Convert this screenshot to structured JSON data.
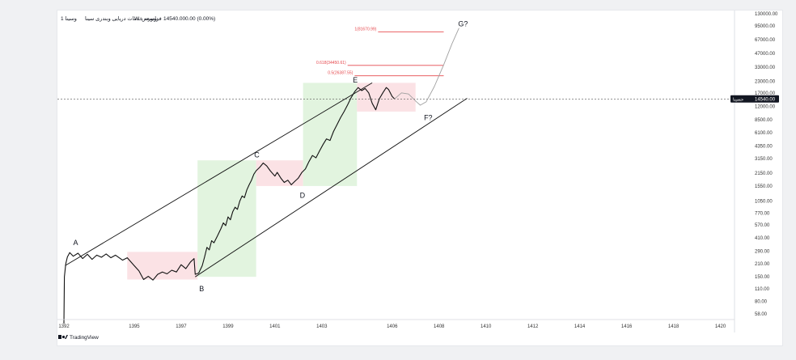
{
  "header": {
    "symbol": "وسینا 1",
    "name": "توسعه خدمات دریایی وبندری سینا",
    "interval": "W",
    "exchange": "فرابورس",
    "price": "14540.00",
    "change": "0.00 (0.00%)"
  },
  "brand": {
    "label": "TradingView"
  },
  "colors": {
    "price_line": "#111111",
    "channel": "#111111",
    "fib_line": "#e5484d",
    "fib_text": "#e5484d",
    "green_box": "#d8f0d4",
    "red_box": "#f9d8dc",
    "price_badge": "#131722",
    "axis_text": "#333333"
  },
  "chart_data": {
    "type": "line",
    "scale": "log",
    "ylim": [
      50,
      130000
    ],
    "xlim": [
      1392,
      1420.5
    ],
    "x_ticks": [
      "1392",
      "1395",
      "1397",
      "1399",
      "1401",
      "1403",
      "1406",
      "1408",
      "1410",
      "1412",
      "1414",
      "1416",
      "1418",
      "1420"
    ],
    "y_ticks": [
      "130000.00",
      "95000.00",
      "67000.00",
      "47000.00",
      "33000.00",
      "23000.00",
      "17000.00",
      "12000.00",
      "8500.00",
      "6100.00",
      "4350.00",
      "3150.00",
      "2150.00",
      "1550.00",
      "1050.00",
      "770.00",
      "570.00",
      "410.00",
      "290.00",
      "210.00",
      "150.00",
      "110.00",
      "80.00",
      "58.00"
    ],
    "current_price": {
      "label": "حسینا",
      "value": "14540.00"
    },
    "price_series": [
      [
        1392.0,
        45
      ],
      [
        1392.02,
        150
      ],
      [
        1392.08,
        210
      ],
      [
        1392.15,
        250
      ],
      [
        1392.25,
        280
      ],
      [
        1392.4,
        255
      ],
      [
        1392.6,
        275
      ],
      [
        1392.8,
        240
      ],
      [
        1393.0,
        268
      ],
      [
        1393.2,
        235
      ],
      [
        1393.4,
        262
      ],
      [
        1393.6,
        248
      ],
      [
        1393.8,
        270
      ],
      [
        1394.0,
        245
      ],
      [
        1394.2,
        262
      ],
      [
        1394.5,
        230
      ],
      [
        1394.7,
        245
      ],
      [
        1395.0,
        200
      ],
      [
        1395.2,
        175
      ],
      [
        1395.4,
        140
      ],
      [
        1395.6,
        152
      ],
      [
        1395.8,
        138
      ],
      [
        1396.0,
        160
      ],
      [
        1396.2,
        170
      ],
      [
        1396.4,
        162
      ],
      [
        1396.6,
        178
      ],
      [
        1396.8,
        170
      ],
      [
        1397.0,
        205
      ],
      [
        1397.2,
        185
      ],
      [
        1397.4,
        220
      ],
      [
        1397.55,
        240
      ],
      [
        1397.6,
        160
      ],
      [
        1397.75,
        165
      ],
      [
        1397.9,
        200
      ],
      [
        1398.0,
        250
      ],
      [
        1398.1,
        320
      ],
      [
        1398.2,
        300
      ],
      [
        1398.3,
        380
      ],
      [
        1398.4,
        360
      ],
      [
        1398.55,
        430
      ],
      [
        1398.7,
        520
      ],
      [
        1398.8,
        600
      ],
      [
        1398.9,
        560
      ],
      [
        1399.0,
        700
      ],
      [
        1399.1,
        650
      ],
      [
        1399.2,
        800
      ],
      [
        1399.3,
        900
      ],
      [
        1399.4,
        850
      ],
      [
        1399.5,
        1050
      ],
      [
        1399.6,
        1200
      ],
      [
        1399.7,
        1150
      ],
      [
        1399.8,
        1400
      ],
      [
        1399.9,
        1600
      ],
      [
        1400.0,
        1800
      ],
      [
        1400.1,
        2100
      ],
      [
        1400.2,
        2300
      ],
      [
        1400.35,
        2500
      ],
      [
        1400.5,
        2800
      ],
      [
        1400.65,
        2600
      ],
      [
        1400.8,
        2300
      ],
      [
        1401.0,
        2000
      ],
      [
        1401.1,
        2200
      ],
      [
        1401.25,
        1900
      ],
      [
        1401.4,
        1700
      ],
      [
        1401.55,
        1800
      ],
      [
        1401.7,
        1600
      ],
      [
        1401.85,
        1750
      ],
      [
        1402.0,
        1900
      ],
      [
        1402.15,
        2200
      ],
      [
        1402.3,
        2400
      ],
      [
        1402.45,
        2900
      ],
      [
        1402.6,
        3400
      ],
      [
        1402.75,
        3200
      ],
      [
        1402.9,
        3800
      ],
      [
        1403.05,
        4500
      ],
      [
        1403.2,
        5200
      ],
      [
        1403.35,
        5000
      ],
      [
        1403.5,
        6300
      ],
      [
        1403.65,
        7500
      ],
      [
        1403.8,
        9000
      ],
      [
        1403.95,
        10500
      ],
      [
        1404.1,
        12500
      ],
      [
        1404.25,
        15000
      ],
      [
        1404.4,
        17500
      ],
      [
        1404.55,
        19500
      ],
      [
        1404.7,
        18000
      ],
      [
        1404.85,
        19000
      ],
      [
        1405.0,
        17000
      ],
      [
        1405.15,
        13000
      ],
      [
        1405.3,
        11000
      ],
      [
        1405.45,
        14500
      ],
      [
        1405.6,
        17000
      ],
      [
        1405.75,
        19500
      ],
      [
        1405.85,
        18500
      ],
      [
        1406.0,
        15500
      ],
      [
        1406.1,
        14540
      ]
    ],
    "projection": [
      [
        1406.1,
        14540
      ],
      [
        1406.4,
        17000
      ],
      [
        1406.7,
        16500
      ],
      [
        1407.0,
        13800
      ],
      [
        1407.2,
        12400
      ],
      [
        1407.45,
        13500
      ],
      [
        1407.8,
        20000
      ],
      [
        1408.2,
        35000
      ],
      [
        1408.55,
        60000
      ],
      [
        1408.85,
        90000
      ]
    ],
    "channel_upper": [
      [
        1392.05,
        200
      ],
      [
        1405.15,
        22000
      ]
    ],
    "channel_lower": [
      [
        1397.6,
        150
      ],
      [
        1409.2,
        14800
      ]
    ],
    "wave_labels": [
      {
        "label": "A",
        "x": 1392.5,
        "y": 300
      },
      {
        "label": "B",
        "x": 1397.6,
        "y": 150
      },
      {
        "label": "C",
        "x": 1400.4,
        "y": 2850
      },
      {
        "label": "D",
        "x": 1401.9,
        "y": 1600
      },
      {
        "label": "E",
        "x": 1404.7,
        "y": 20500
      },
      {
        "label": "F?",
        "x": 1407.4,
        "y": 11000
      },
      {
        "label": "G?",
        "x": 1408.85,
        "y": 90000
      }
    ],
    "fib_levels": [
      {
        "label": "1(81670.99)",
        "value": 81670.99,
        "x_start": 1405.4,
        "x_end": 1408.2
      },
      {
        "label": "0.618(34450.61)",
        "value": 34450.61,
        "x_start": 1404.1,
        "x_end": 1408.2
      },
      {
        "label": "0.5(26387.55)",
        "value": 26387.55,
        "x_start": 1404.4,
        "x_end": 1408.2
      }
    ],
    "boxes": [
      {
        "type": "red",
        "x0": 1394.7,
        "x1": 1397.7,
        "y0": 140,
        "y1": 285
      },
      {
        "type": "green",
        "x0": 1397.7,
        "x1": 1400.2,
        "y0": 150,
        "y1": 3000
      },
      {
        "type": "red",
        "x0": 1400.2,
        "x1": 1402.2,
        "y0": 1550,
        "y1": 3000
      },
      {
        "type": "green",
        "x0": 1402.2,
        "x1": 1404.5,
        "y0": 1550,
        "y1": 22000
      },
      {
        "type": "red",
        "x0": 1404.5,
        "x1": 1407.0,
        "y0": 10500,
        "y1": 22000
      }
    ]
  }
}
